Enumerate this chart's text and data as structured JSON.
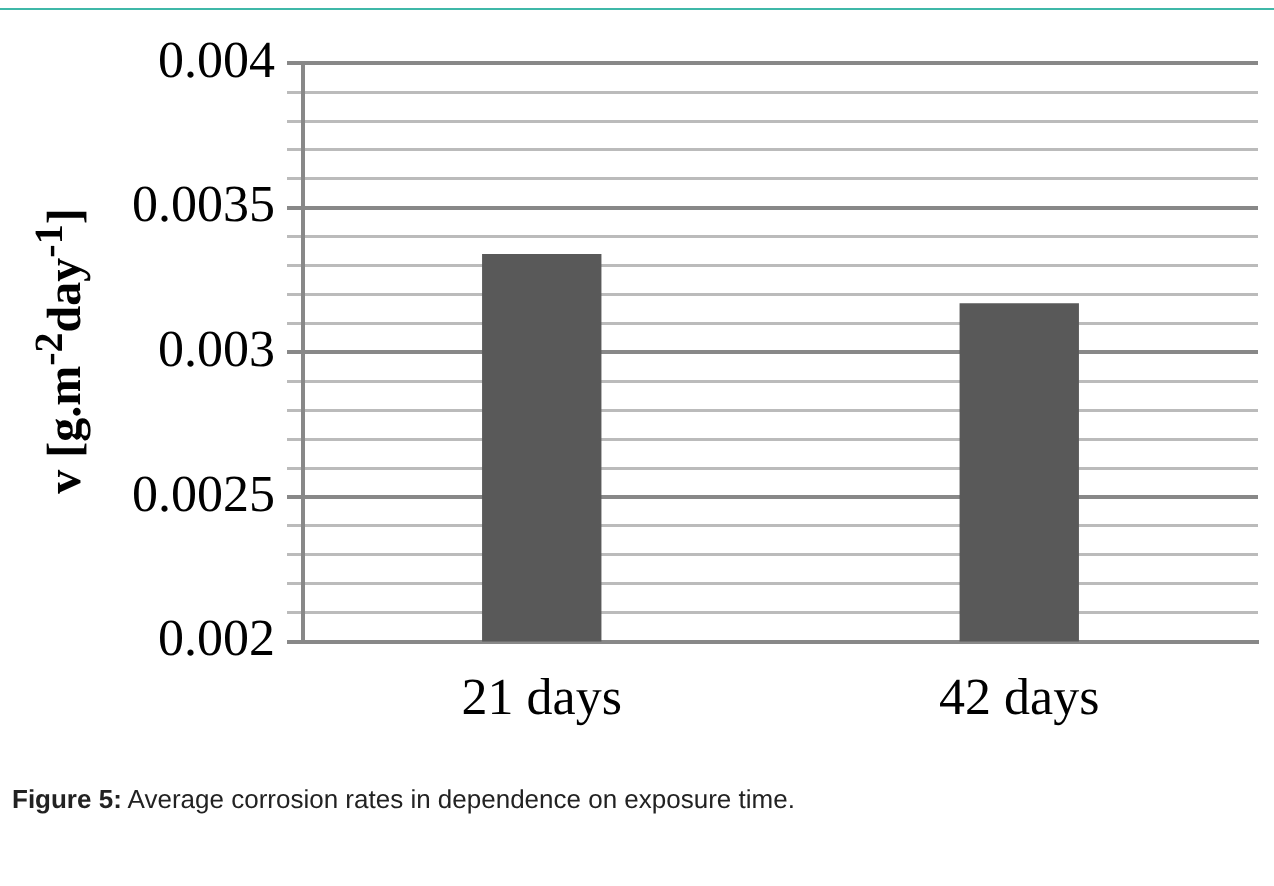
{
  "chart_data": {
    "type": "bar",
    "ylabel": "v [g.m$^{-2}$day$^{-1}$]",
    "categories": [
      "21 days",
      "42 days"
    ],
    "values": [
      0.00334,
      0.00317
    ],
    "color": "#595959",
    "ylim": [
      0.002,
      0.004
    ],
    "yticks": [
      0.002,
      {
        "value": 0.0021,
        "label": null
      },
      {
        "value": 0.0022,
        "label": null
      },
      {
        "value": 0.0023,
        "label": null
      },
      {
        "value": 0.0024,
        "label": null
      },
      0.0025,
      {
        "value": 0.0026,
        "label": null
      },
      {
        "value": 0.0027,
        "label": null
      },
      {
        "value": 0.0028,
        "label": null
      },
      {
        "value": 0.0029,
        "label": null
      },
      0.003,
      {
        "value": 0.0031,
        "label": null
      },
      {
        "value": 0.0032,
        "label": null
      },
      {
        "value": 0.0033,
        "label": null
      },
      {
        "value": 0.0034,
        "label": null
      },
      0.0035,
      {
        "value": 0.0036,
        "label": null
      },
      {
        "value": 0.0037,
        "label": null
      },
      {
        "value": 0.0038,
        "label": null
      },
      {
        "value": 0.0039,
        "label": null
      },
      0.004
    ],
    "grid": "y",
    "legend": false,
    "annotations": [
      "Figure 5: Average corrosion rates in dependence on exposure time."
    ]
  }
}
